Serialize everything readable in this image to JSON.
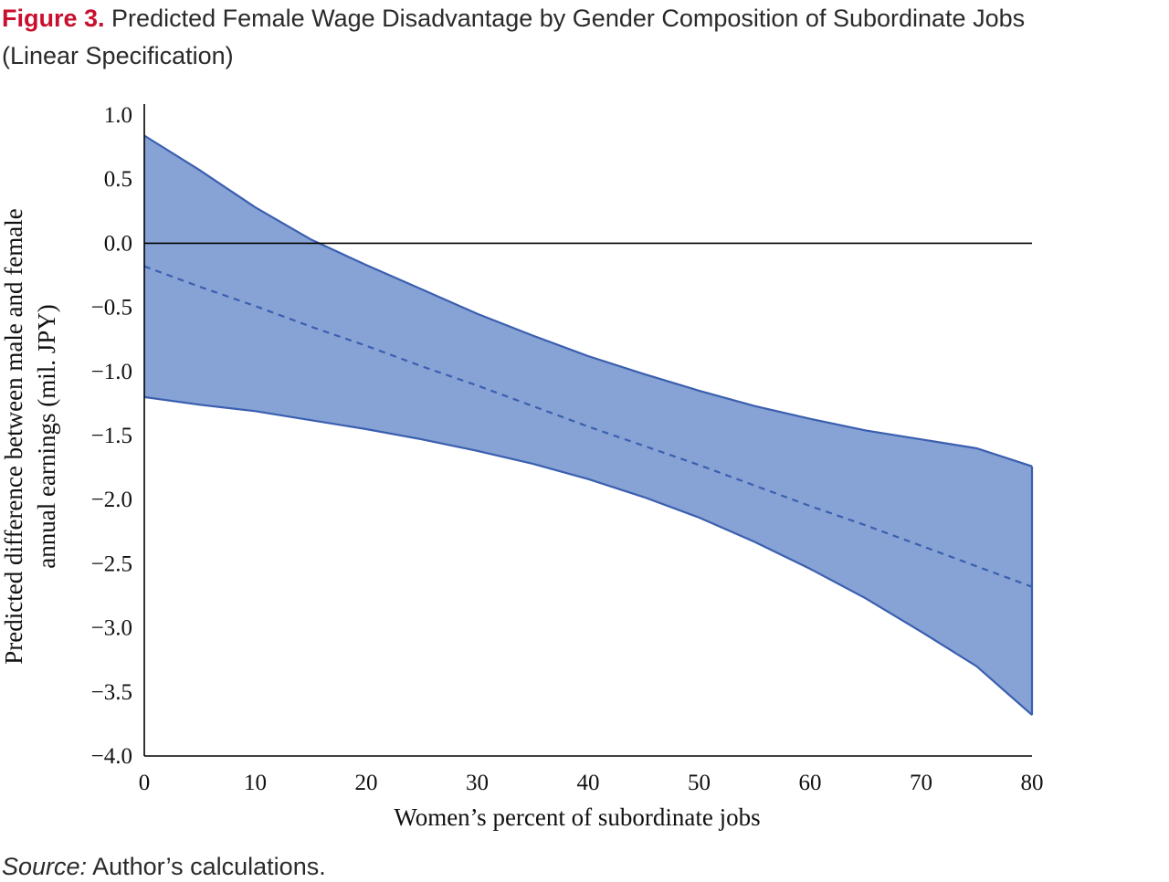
{
  "figure": {
    "number": "Figure 3.",
    "title": "Predicted Female Wage Disadvantage by Gender Composition of Subordinate Jobs",
    "subtitle": "(Linear Specification)",
    "source_label": "Source:",
    "source_text": " Author’s calculations."
  },
  "chart_data": {
    "type": "area",
    "xlabel": "Women’s percent of subordinate jobs",
    "ylabel": [
      "Predicted difference between male and female",
      "annual earnings (mil. JPY)"
    ],
    "xlim": [
      0,
      80
    ],
    "ylim": [
      -4.0,
      1.0
    ],
    "xticks": [
      0,
      10,
      20,
      30,
      40,
      50,
      60,
      70,
      80
    ],
    "xtick_labels": [
      "0",
      "10",
      "20",
      "30",
      "40",
      "50",
      "60",
      "70",
      "80"
    ],
    "yticks": [
      1.0,
      0.5,
      0.0,
      -0.5,
      -1.0,
      -1.5,
      -2.0,
      -2.5,
      -3.0,
      -3.5,
      -4.0
    ],
    "ytick_labels": [
      "1.0",
      "0.5",
      "0.0",
      "−0.5",
      "−1.0",
      "−1.5",
      "−2.0",
      "−2.5",
      "−3.0",
      "−3.5",
      "−4.0"
    ],
    "reference_line_y": 0.0,
    "x": [
      0,
      5,
      10,
      15,
      20,
      25,
      30,
      35,
      40,
      45,
      50,
      55,
      60,
      65,
      70,
      75,
      80
    ],
    "series": [
      {
        "role": "upper_bound",
        "values": [
          0.84,
          0.57,
          0.28,
          0.03,
          -0.17,
          -0.36,
          -0.55,
          -0.72,
          -0.88,
          -1.02,
          -1.15,
          -1.27,
          -1.37,
          -1.46,
          -1.53,
          -1.6,
          -1.74
        ]
      },
      {
        "role": "point_estimate",
        "values": [
          -0.18,
          -0.34,
          -0.49,
          -0.65,
          -0.8,
          -0.96,
          -1.11,
          -1.27,
          -1.43,
          -1.58,
          -1.73,
          -1.89,
          -2.05,
          -2.2,
          -2.36,
          -2.52,
          -2.68
        ]
      },
      {
        "role": "lower_bound",
        "values": [
          -1.2,
          -1.26,
          -1.31,
          -1.38,
          -1.45,
          -1.53,
          -1.62,
          -1.72,
          -1.84,
          -1.98,
          -2.14,
          -2.33,
          -2.54,
          -2.77,
          -3.03,
          -3.3,
          -3.68
        ]
      }
    ],
    "colors": {
      "band_fill": "#87a2d4",
      "band_edge": "#3a5fb0",
      "estimate_line": "#3a5fb0",
      "axis": "#000000"
    },
    "grid": false,
    "legend": "none"
  }
}
